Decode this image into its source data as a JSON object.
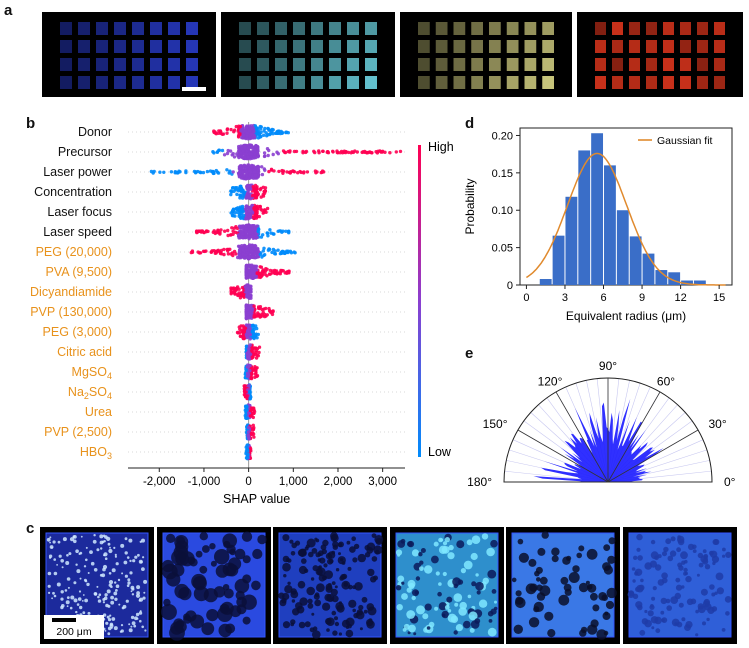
{
  "panel_labels": {
    "a": "a",
    "b": "b",
    "c": "c",
    "d": "d",
    "e": "e"
  },
  "panel_a": {
    "images": [
      {
        "name": "grid-blue",
        "color": "#2b3fd6"
      },
      {
        "name": "grid-cyan",
        "color": "#6fd8e6"
      },
      {
        "name": "grid-yellow",
        "color": "#e0dc8a"
      },
      {
        "name": "grid-red",
        "color": "#d8341c"
      }
    ]
  },
  "chart_data": [
    {
      "type": "scatter",
      "subtype": "shap-beeswarm",
      "xlabel": "SHAP value",
      "xlim": [
        -2700,
        3500
      ],
      "xticks": [
        "-2,000",
        "-1,000",
        "0",
        "1,000",
        "2,000",
        "3,000"
      ],
      "xtick_values": [
        -2000,
        -1000,
        0,
        1000,
        2000,
        3000
      ],
      "colorbar": {
        "high": "High",
        "low": "Low",
        "high_color": "#ff0052",
        "low_color": "#008bfb"
      },
      "features": [
        {
          "label": "Donor",
          "color": "#111111",
          "min": -800,
          "max": 900,
          "high_side": "negative"
        },
        {
          "label": "Precursor",
          "color": "#111111",
          "min": -800,
          "max": 3400,
          "high_side": "positive"
        },
        {
          "label": "Laser power",
          "color": "#111111",
          "min": -2200,
          "max": 1700,
          "high_side": "positive"
        },
        {
          "label": "Concentration",
          "color": "#111111",
          "min": -400,
          "max": 400,
          "high_side": "positive"
        },
        {
          "label": "Laser focus",
          "color": "#111111",
          "min": -400,
          "max": 450,
          "high_side": "positive"
        },
        {
          "label": "Laser speed",
          "color": "#111111",
          "min": -1200,
          "max": 900,
          "high_side": "negative"
        },
        {
          "label": "PEG (20,000)",
          "color": "#e8921c",
          "min": -1400,
          "max": 1050,
          "high_side": "negative"
        },
        {
          "label": "PVA (9,500)",
          "color": "#e8921c",
          "min": -50,
          "max": 950,
          "high_side": "positive"
        },
        {
          "label": "Dicyandiamide",
          "color": "#e8921c",
          "min": -400,
          "max": 50,
          "high_side": "negative"
        },
        {
          "label": "PVP (130,000)",
          "color": "#e8921c",
          "min": -50,
          "max": 550,
          "high_side": "positive"
        },
        {
          "label": "PEG (3,000)",
          "color": "#e8921c",
          "min": -250,
          "max": 250,
          "high_side": "negative"
        },
        {
          "label": "Citric acid",
          "color": "#e8921c",
          "min": -50,
          "max": 250,
          "high_side": "positive"
        },
        {
          "label": "MgSO",
          "sub": "4",
          "color": "#e8921c",
          "min": -80,
          "max": 200,
          "high_side": "positive"
        },
        {
          "label": "Na",
          "sub": "2",
          "label2": "SO",
          "sub2": "4",
          "color": "#e8921c",
          "min": -100,
          "max": 60,
          "high_side": "negative"
        },
        {
          "label": "Urea",
          "color": "#e8921c",
          "min": -100,
          "max": 150,
          "high_side": "positive"
        },
        {
          "label": "PVP (2,500)",
          "color": "#e8921c",
          "min": -50,
          "max": 120,
          "high_side": "positive"
        },
        {
          "label": "HBO",
          "sub": "3",
          "color": "#e8921c",
          "min": -60,
          "max": 50,
          "high_side": "positive"
        }
      ]
    },
    {
      "type": "bar",
      "subtype": "histogram-with-fit",
      "xlabel": "Equivalent radius (μm)",
      "ylabel": "Probability",
      "xlim": [
        -0.5,
        16
      ],
      "ylim": [
        0,
        0.21
      ],
      "xticks": [
        0,
        3,
        6,
        9,
        12,
        15
      ],
      "yticks": [
        "0",
        "0.05",
        "0.10",
        "0.15",
        "0.20"
      ],
      "ytick_values": [
        0,
        0.05,
        0.1,
        0.15,
        0.2
      ],
      "bin_width": 1,
      "bin_starts": [
        1,
        2,
        3,
        4,
        5,
        6,
        7,
        8,
        9,
        10,
        11,
        12,
        13,
        14
      ],
      "values": [
        0.008,
        0.066,
        0.118,
        0.18,
        0.203,
        0.16,
        0.1,
        0.065,
        0.042,
        0.02,
        0.017,
        0.006,
        0.006,
        0.0
      ],
      "bar_color": "#3a6ec8",
      "fit": {
        "label": "Gaussian fit",
        "mean": 5.5,
        "sd": 2.3,
        "peak": 0.176,
        "color": "#e08a2e"
      },
      "legend_position": "top-right"
    },
    {
      "type": "polar",
      "subtype": "angular-distribution-half",
      "angle_labels": [
        "0°",
        "30°",
        "60°",
        "90°",
        "120°",
        "150°",
        "180°"
      ],
      "angle_values": [
        0,
        30,
        60,
        90,
        120,
        150,
        180
      ],
      "fill_color": "#1a1aff"
    }
  ],
  "panel_c": {
    "scale_bar_label": "200 μm",
    "images": [
      {
        "name": "tile-dense-dots",
        "base": "#1c2a9c"
      },
      {
        "name": "tile-dark-network",
        "base": "#2a4ae0"
      },
      {
        "name": "tile-fine-network",
        "base": "#1f3fbf"
      },
      {
        "name": "tile-cyan-mixed",
        "base": "#2e8fcc"
      },
      {
        "name": "tile-sparse-holes",
        "base": "#3a78e6"
      },
      {
        "name": "tile-uniform",
        "base": "#2f5fd8"
      }
    ]
  }
}
